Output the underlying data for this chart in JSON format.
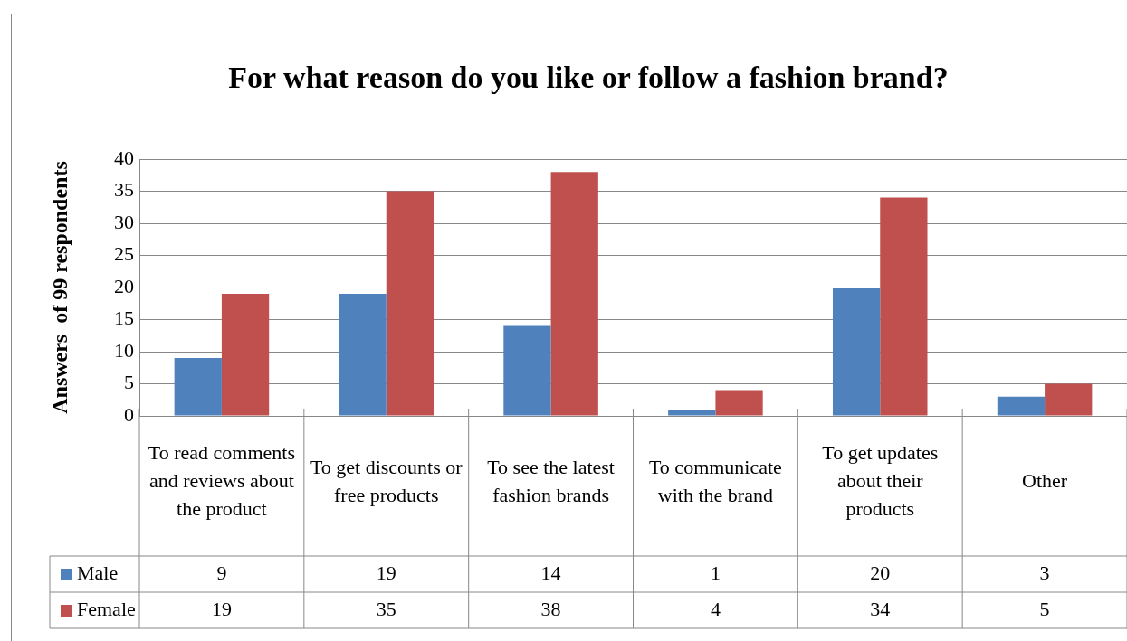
{
  "chart_data": {
    "type": "bar",
    "title": "For what reason do you like or follow a fashion brand?",
    "ylabel": "Answers  of 99 respondents",
    "categories": [
      "To read comments and reviews about the product",
      "To get discounts or free products",
      "To see the latest fashion brands",
      "To communicate with the brand",
      "To get updates about their products",
      "Other"
    ],
    "series": [
      {
        "name": "Male",
        "color": "#4f81bd",
        "values": [
          9,
          19,
          14,
          1,
          20,
          3
        ]
      },
      {
        "name": "Female",
        "color": "#c0504d",
        "values": [
          19,
          35,
          38,
          4,
          34,
          5
        ]
      }
    ],
    "ylim": [
      0,
      40
    ],
    "yticks": [
      0,
      5,
      10,
      15,
      20,
      25,
      30,
      35,
      40
    ],
    "grid": "y",
    "legend": "bottom left",
    "data_labels": true
  }
}
